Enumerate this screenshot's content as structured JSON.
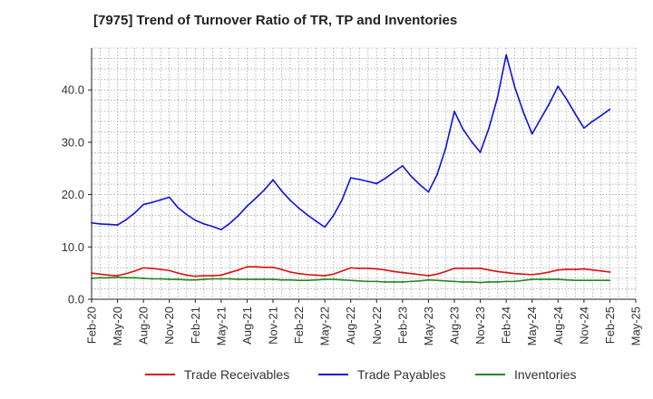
{
  "title": "[7975]  Trend of Turnover Ratio of TR, TP and Inventories",
  "chart_data": {
    "type": "line",
    "title": "[7975]  Trend of Turnover Ratio of TR, TP and Inventories",
    "xlabel": "",
    "ylabel": "",
    "ylim": [
      0,
      48
    ],
    "yticks": [
      0,
      10,
      20,
      30,
      40
    ],
    "ytick_labels": [
      "0.0",
      "10.0",
      "20.0",
      "30.0",
      "40.0"
    ],
    "xtick_labels": [
      "Feb-20",
      "May-20",
      "Aug-20",
      "Nov-20",
      "Feb-21",
      "May-21",
      "Aug-21",
      "Nov-21",
      "Feb-22",
      "May-22",
      "Aug-22",
      "Nov-22",
      "Feb-23",
      "May-23",
      "Aug-23",
      "Nov-23",
      "Feb-24",
      "May-24",
      "Aug-24",
      "Nov-24",
      "Feb-25",
      "May-25"
    ],
    "grid": true,
    "legend_position": "bottom",
    "x": [
      "Feb-20",
      "Mar-20",
      "Apr-20",
      "May-20",
      "Jun-20",
      "Jul-20",
      "Aug-20",
      "Sep-20",
      "Oct-20",
      "Nov-20",
      "Dec-20",
      "Jan-21",
      "Feb-21",
      "Mar-21",
      "Apr-21",
      "May-21",
      "Jun-21",
      "Jul-21",
      "Aug-21",
      "Sep-21",
      "Oct-21",
      "Nov-21",
      "Dec-21",
      "Jan-22",
      "Feb-22",
      "Mar-22",
      "Apr-22",
      "May-22",
      "Jun-22",
      "Jul-22",
      "Aug-22",
      "Sep-22",
      "Oct-22",
      "Nov-22",
      "Dec-22",
      "Jan-23",
      "Feb-23",
      "Mar-23",
      "Apr-23",
      "May-23",
      "Jun-23",
      "Jul-23",
      "Aug-23",
      "Sep-23",
      "Oct-23",
      "Nov-23",
      "Dec-23",
      "Jan-24",
      "Feb-24",
      "Mar-24",
      "Apr-24",
      "May-24",
      "Jun-24",
      "Jul-24",
      "Aug-24",
      "Sep-24",
      "Oct-24",
      "Nov-24",
      "Dec-24",
      "Jan-25",
      "Feb-25"
    ],
    "series": [
      {
        "name": "Trade Receivables",
        "color": "#dd1111",
        "values": [
          5.0,
          4.8,
          4.6,
          4.5,
          4.9,
          5.4,
          6.0,
          5.9,
          5.7,
          5.5,
          5.0,
          4.6,
          4.4,
          4.5,
          4.5,
          4.6,
          5.1,
          5.6,
          6.2,
          6.2,
          6.1,
          6.1,
          5.7,
          5.2,
          4.9,
          4.7,
          4.6,
          4.5,
          4.8,
          5.4,
          6.0,
          5.9,
          5.9,
          5.8,
          5.6,
          5.3,
          5.1,
          4.9,
          4.7,
          4.5,
          4.8,
          5.3,
          5.9,
          5.9,
          5.9,
          5.9,
          5.6,
          5.3,
          5.1,
          4.9,
          4.8,
          4.7,
          4.9,
          5.2,
          5.6,
          5.7,
          5.7,
          5.8,
          5.6,
          5.4,
          5.2
        ]
      },
      {
        "name": "Trade Payables",
        "color": "#1111dd",
        "values": [
          14.6,
          14.4,
          14.3,
          14.2,
          15.2,
          16.5,
          18.1,
          18.5,
          19.0,
          19.5,
          17.5,
          16.2,
          15.1,
          14.4,
          13.9,
          13.3,
          14.5,
          16.0,
          17.8,
          19.3,
          20.9,
          22.8,
          20.7,
          18.9,
          17.4,
          16.1,
          14.9,
          13.8,
          16.0,
          19.0,
          23.2,
          22.9,
          22.5,
          22.1,
          23.1,
          24.3,
          25.5,
          23.5,
          21.9,
          20.5,
          23.8,
          28.9,
          35.9,
          32.5,
          30.1,
          28.1,
          32.7,
          38.6,
          46.7,
          40.5,
          35.7,
          31.6,
          34.5,
          37.4,
          40.7,
          38.2,
          35.4,
          32.7,
          34.0,
          35.1,
          36.3
        ]
      },
      {
        "name": "Inventories",
        "color": "#228822",
        "values": [
          4.0,
          4.1,
          4.1,
          4.2,
          4.1,
          4.1,
          4.0,
          3.9,
          3.9,
          3.8,
          3.8,
          3.7,
          3.7,
          3.8,
          3.9,
          3.9,
          3.9,
          3.8,
          3.8,
          3.8,
          3.8,
          3.8,
          3.7,
          3.7,
          3.6,
          3.6,
          3.7,
          3.8,
          3.8,
          3.7,
          3.6,
          3.5,
          3.4,
          3.4,
          3.3,
          3.3,
          3.3,
          3.4,
          3.5,
          3.7,
          3.6,
          3.5,
          3.4,
          3.3,
          3.3,
          3.2,
          3.3,
          3.3,
          3.4,
          3.4,
          3.6,
          3.8,
          3.8,
          3.8,
          3.8,
          3.7,
          3.6,
          3.6,
          3.6,
          3.6,
          3.6
        ]
      }
    ]
  }
}
